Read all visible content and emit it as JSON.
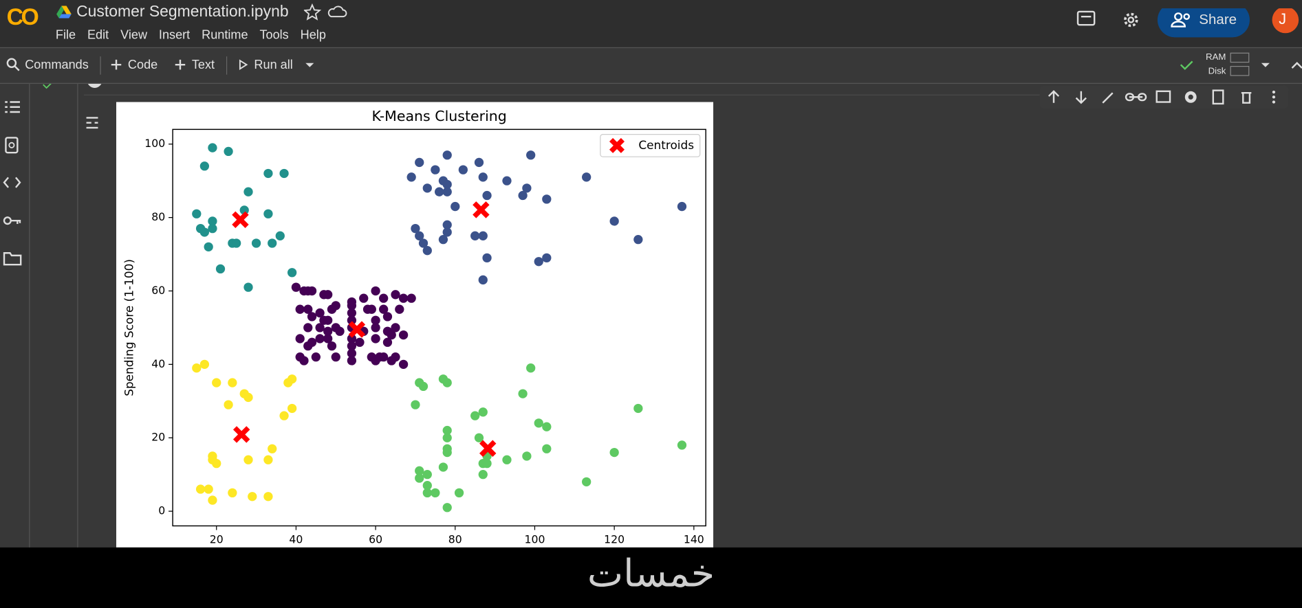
{
  "header": {
    "logo": "CO",
    "title": "Customer Segmentation.ipynb",
    "menu": [
      "File",
      "Edit",
      "View",
      "Insert",
      "Runtime",
      "Tools",
      "Help"
    ],
    "share": "Share",
    "avatar": "J"
  },
  "toolbar": {
    "commands": "Commands",
    "code": "Code",
    "text": "Text",
    "run_all": "Run all",
    "ram": "RAM",
    "disk": "Disk"
  },
  "footer": {
    "watermark": "خمسات"
  },
  "chart_data": {
    "type": "scatter",
    "title": "K-Means Clustering",
    "y_label": "Spending Score (1-100)",
    "xlim": [
      9,
      143
    ],
    "ylim": [
      -4,
      104
    ],
    "xticks": [
      20,
      40,
      60,
      80,
      100,
      120,
      140
    ],
    "yticks": [
      0,
      20,
      40,
      60,
      80,
      100
    ],
    "grid": false,
    "legend": "upper right",
    "series": [
      {
        "color": "#440154",
        "marker": "o",
        "x": [
          40,
          42,
          43,
          44,
          47,
          48,
          41,
          43,
          44,
          46,
          47,
          48,
          49,
          50,
          43,
          46,
          48,
          50,
          51,
          41,
          43,
          44,
          46,
          48,
          49,
          45,
          41,
          42,
          50,
          54,
          54,
          54,
          54,
          54,
          54,
          54,
          54,
          54,
          57,
          58,
          59,
          60,
          60,
          60,
          60,
          59,
          60,
          62,
          62,
          63,
          63,
          63,
          64,
          65,
          66,
          67,
          65,
          65,
          64,
          67,
          69,
          67,
          56,
          57,
          61,
          62
        ],
        "values": [
          61,
          60,
          60,
          60,
          59,
          59,
          55,
          55,
          53,
          54,
          52,
          52,
          55,
          56,
          50,
          50,
          49,
          50,
          49,
          47,
          45,
          46,
          47,
          47,
          45,
          42,
          42,
          41,
          42,
          57,
          56,
          54,
          52,
          50,
          47,
          45,
          43,
          41,
          58,
          55,
          55,
          60,
          50,
          47,
          52,
          42,
          41,
          58,
          55,
          53,
          49,
          46,
          48,
          59,
          55,
          58,
          50,
          42,
          41,
          40,
          58,
          48,
          46,
          49,
          42,
          42
        ]
      },
      {
        "color": "#3b528b",
        "marker": "o",
        "x": [
          71,
          75,
          78,
          86,
          77,
          78,
          78,
          82,
          73,
          76,
          69,
          87,
          93,
          97,
          98,
          99,
          103,
          113,
          80,
          88,
          70,
          71,
          73,
          72,
          77,
          78,
          78,
          85,
          87,
          88,
          101,
          103,
          120,
          126,
          137,
          87
        ],
        "values": [
          95,
          93,
          97,
          95,
          90,
          89,
          87,
          93,
          88,
          87,
          91,
          91,
          90,
          86,
          88,
          97,
          85,
          91,
          83,
          86,
          77,
          75,
          71,
          73,
          74,
          78,
          76,
          75,
          75,
          69,
          68,
          69,
          79,
          74,
          83,
          63
        ]
      },
      {
        "color": "#21918c",
        "marker": "o",
        "x": [
          19,
          23,
          17,
          33,
          37,
          28,
          15,
          27,
          33,
          19,
          19,
          16,
          17,
          36,
          24,
          25,
          30,
          34,
          18,
          21,
          39,
          28
        ],
        "values": [
          99,
          98,
          94,
          92,
          92,
          87,
          81,
          82,
          81,
          79,
          77,
          77,
          76,
          75,
          73,
          73,
          73,
          73,
          72,
          66,
          65,
          61
        ]
      },
      {
        "color": "#5ec962",
        "marker": "o",
        "x": [
          71,
          72,
          77,
          78,
          70,
          85,
          87,
          97,
          99,
          86,
          78,
          78,
          78,
          78,
          71,
          71,
          73,
          73,
          73,
          75,
          77,
          78,
          81,
          87,
          87,
          88,
          88,
          93,
          98,
          101,
          103,
          103,
          113,
          120,
          126,
          137
        ],
        "values": [
          35,
          34,
          36,
          35,
          29,
          26,
          27,
          32,
          39,
          20,
          22,
          20,
          17,
          16,
          11,
          9,
          10,
          7,
          5,
          5,
          12,
          1,
          5,
          10,
          13,
          15,
          13,
          14,
          15,
          24,
          23,
          17,
          8,
          16,
          28,
          18
        ]
      },
      {
        "color": "#fde725",
        "marker": "o",
        "x": [
          15,
          17,
          20,
          24,
          23,
          27,
          28,
          39,
          38,
          39,
          37,
          19,
          19,
          20,
          28,
          33,
          34,
          16,
          18,
          19,
          24,
          29,
          33
        ],
        "values": [
          39,
          40,
          35,
          35,
          29,
          32,
          31,
          36,
          35,
          28,
          26,
          15,
          14,
          13,
          14,
          14,
          17,
          6,
          6,
          3,
          5,
          4,
          4
        ]
      },
      {
        "name": "Centroids",
        "color": "#ff0000",
        "marker": "X",
        "x": [
          26,
          86.5,
          55.3,
          88.2,
          26.3
        ],
        "values": [
          79.4,
          82.1,
          49.5,
          17.1,
          20.9
        ]
      }
    ]
  }
}
